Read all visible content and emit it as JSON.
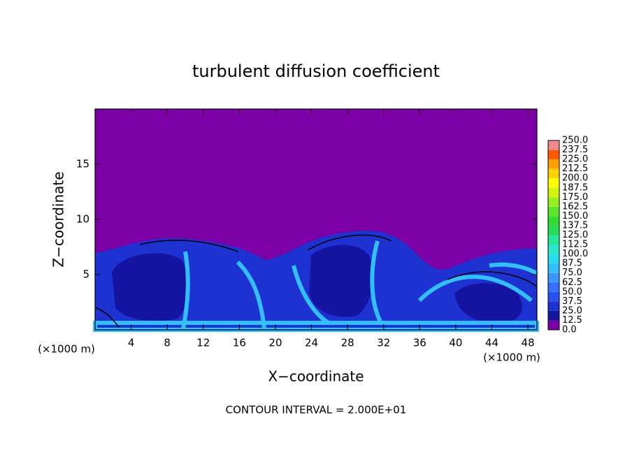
{
  "chart_data": {
    "type": "contour",
    "title": "turbulent diffusion coefficient",
    "x_label": "X−coordinate",
    "y_label": "Z−coordinate",
    "x_unit": "(×1000 m)",
    "y_unit": "(×1000 m)",
    "annotation": "CONTOUR INTERVAL = 2.000E+01",
    "xlim": [
      0,
      49
    ],
    "xticks": [
      4,
      8,
      12,
      16,
      20,
      24,
      28,
      32,
      36,
      40,
      44,
      48
    ],
    "ylim": [
      0,
      20
    ],
    "yticks": [
      5,
      10,
      15
    ],
    "colorbar": {
      "levels": [
        {
          "value": 0,
          "label": "0.0"
        },
        12.5,
        {
          "value": 25,
          "label": "25.0"
        },
        37.5,
        {
          "value": 50,
          "label": "50.0"
        },
        62.5,
        {
          "value": 75,
          "label": "75.0"
        },
        87.5,
        {
          "value": 100,
          "label": "100.0"
        },
        112.5,
        {
          "value": 125,
          "label": "125.0"
        },
        137.5,
        {
          "value": 150,
          "label": "150.0"
        },
        162.5,
        {
          "value": 175,
          "label": "175.0"
        },
        187.5,
        {
          "value": 200,
          "label": "200.0"
        },
        212.5,
        {
          "value": 225,
          "label": "225.0"
        },
        237.5,
        {
          "value": 250,
          "label": "250.0"
        }
      ],
      "colors": [
        "#7b00a5",
        "#1414a0",
        "#1e32d2",
        "#2850f0",
        "#3270ff",
        "#3c96ff",
        "#32beff",
        "#28dcf0",
        "#28e6c8",
        "#28e69b",
        "#28dc5a",
        "#32dc32",
        "#5ae628",
        "#96f01e",
        "#d2f50f",
        "#ffff00",
        "#ffd200",
        "#ffa000",
        "#ff5a00",
        "#f08c8c"
      ]
    }
  }
}
